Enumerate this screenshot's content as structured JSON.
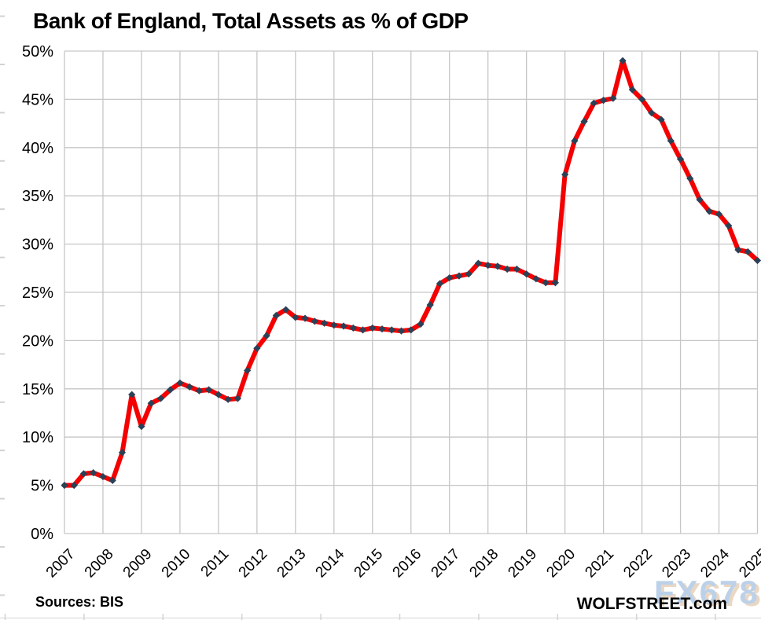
{
  "header": {
    "title": "Bank of England, Total Assets as % of GDP"
  },
  "footer": {
    "sources": "Sources: BIS",
    "branding": "WOLFSTREET.com"
  },
  "watermark": {
    "text": "FX678",
    "color": "#b9cfe8",
    "shadow_color": "#e8d5c0"
  },
  "chart_data": {
    "type": "line",
    "title": "Bank of England, Total Assets as % of GDP",
    "xlabel": "",
    "ylabel": "",
    "x_start_year": 2007,
    "x_end_year": 2025,
    "x_step_years": 0.25,
    "frequency": "quarterly",
    "x_tick_labels": [
      "2007",
      "2008",
      "2009",
      "2010",
      "2011",
      "2012",
      "2013",
      "2014",
      "2015",
      "2016",
      "2017",
      "2018",
      "2019",
      "2020",
      "2021",
      "2022",
      "2023",
      "2024",
      "2025"
    ],
    "yticks": [
      0,
      5,
      10,
      15,
      20,
      25,
      30,
      35,
      40,
      45,
      50
    ],
    "y_tick_labels": [
      "0%",
      "5%",
      "10%",
      "15%",
      "20%",
      "25%",
      "30%",
      "35%",
      "40%",
      "45%",
      "50%"
    ],
    "ylim": [
      0,
      50
    ],
    "grid": true,
    "legend_position": "none",
    "line_color": "#f40000",
    "marker_color": "#2b4156",
    "marker_shape": "diamond",
    "gridline_color": "#c6c6c6",
    "series": [
      {
        "name": "Bank of England total assets as % of GDP",
        "values": [
          5.0,
          5.0,
          6.2,
          6.3,
          5.9,
          5.5,
          8.4,
          14.4,
          11.1,
          13.5,
          14.0,
          14.9,
          15.6,
          15.2,
          14.8,
          14.9,
          14.4,
          13.9,
          14.0,
          16.9,
          19.2,
          20.5,
          22.6,
          23.2,
          22.4,
          22.3,
          22.0,
          21.8,
          21.6,
          21.5,
          21.3,
          21.1,
          21.3,
          21.2,
          21.1,
          21.0,
          21.1,
          21.7,
          23.7,
          25.9,
          26.5,
          26.7,
          26.9,
          28.0,
          27.8,
          27.7,
          27.4,
          27.4,
          26.9,
          26.4,
          26.0,
          26.0,
          37.2,
          40.7,
          42.7,
          44.6,
          44.9,
          45.1,
          49.0,
          46.0,
          45.0,
          43.6,
          42.9,
          40.7,
          38.8,
          36.8,
          34.6,
          33.4,
          33.1,
          31.9,
          29.4,
          29.2,
          28.3
        ]
      }
    ]
  }
}
